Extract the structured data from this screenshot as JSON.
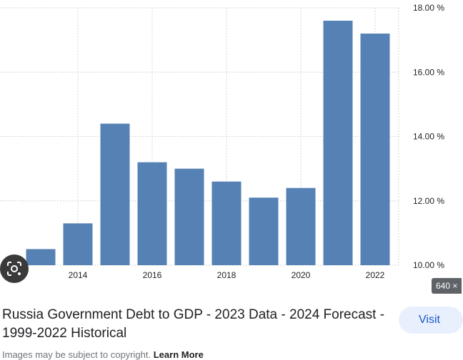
{
  "result": {
    "title": "Russia Government Debt to GDP - 2023 Data - 2024 Forecast - 1999-2022 Historical",
    "visit_label": "Visit",
    "size_badge": "640 ×",
    "copyright_note": "Images may be subject to copyright.",
    "learn_more_label": "Learn More"
  },
  "icons": {
    "lens": "lens-icon"
  },
  "colors": {
    "bar": "#5581b4",
    "grid": "#d4d4d4",
    "visit_bg": "#e8f0fe",
    "visit_text": "#1a56c9"
  },
  "chart_data": {
    "type": "bar",
    "x": [
      2013,
      2014,
      2015,
      2016,
      2017,
      2018,
      2019,
      2020,
      2021,
      2022
    ],
    "values": [
      10.5,
      11.3,
      14.4,
      13.2,
      13.0,
      12.6,
      12.1,
      12.4,
      17.6,
      17.2
    ],
    "ylim": [
      10,
      18
    ],
    "y_ticks": [
      10,
      12,
      14,
      16,
      18
    ],
    "y_tick_labels": [
      "10.00 %",
      "12.00 %",
      "14.00 %",
      "16.00 %",
      "18.00 %"
    ],
    "x_ticks": [
      2014,
      2016,
      2018,
      2020,
      2022
    ],
    "x_tick_labels": [
      "2014",
      "2016",
      "2018",
      "2020",
      "2022"
    ],
    "y_axis_position": "right",
    "grid": true
  }
}
